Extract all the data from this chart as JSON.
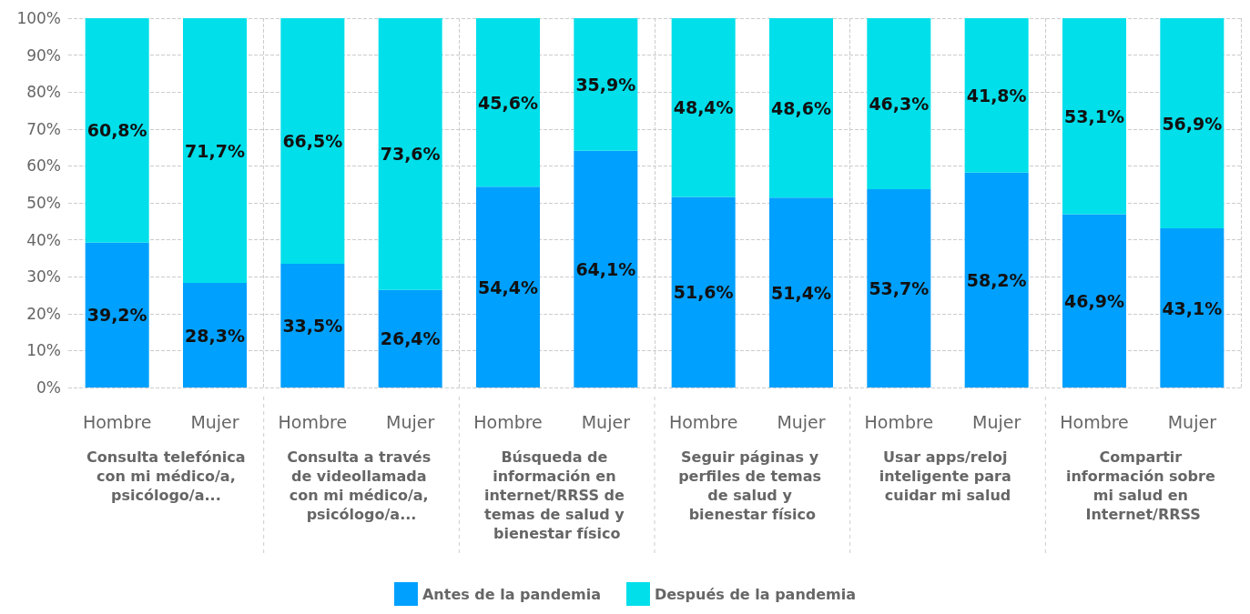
{
  "chart_data": {
    "type": "bar",
    "stacked": true,
    "categories": [
      "Hombre",
      "Mujer",
      "Hombre",
      "Mujer",
      "Hombre",
      "Mujer",
      "Hombre",
      "Mujer",
      "Hombre",
      "Mujer",
      "Hombre",
      "Mujer"
    ],
    "series": [
      {
        "name": "Antes de la pandemia",
        "color": "#00a0ff",
        "values": [
          39.2,
          28.3,
          33.5,
          26.4,
          54.4,
          64.1,
          51.6,
          51.4,
          53.7,
          58.2,
          46.9,
          43.1
        ],
        "value_labels": [
          "39,2%",
          "28,3%",
          "33,5%",
          "26,4%",
          "54,4%",
          "64,1%",
          "51,6%",
          "51,4%",
          "53,7%",
          "58,2%",
          "46,9%",
          "43,1%"
        ]
      },
      {
        "name": "Después de la pandemia",
        "color": "#00dfea",
        "values": [
          60.8,
          71.7,
          66.5,
          73.6,
          45.6,
          35.9,
          48.4,
          48.6,
          46.3,
          41.8,
          53.1,
          56.9
        ],
        "value_labels": [
          "60,8%",
          "71,7%",
          "66,5%",
          "73,6%",
          "45,6%",
          "35,9%",
          "48,4%",
          "48,6%",
          "46,3%",
          "41,8%",
          "53,1%",
          "56,9%"
        ]
      }
    ],
    "ylim": [
      0,
      100
    ],
    "yticks": [
      {
        "value": 0,
        "label": "0%"
      },
      {
        "value": 10,
        "label": "10%"
      },
      {
        "value": 20,
        "label": "20%"
      },
      {
        "value": 30,
        "label": "30%"
      },
      {
        "value": 40,
        "label": "40%"
      },
      {
        "value": 50,
        "label": "50%"
      },
      {
        "value": 60,
        "label": "60%"
      },
      {
        "value": 70,
        "label": "70%"
      },
      {
        "value": 80,
        "label": "80%"
      },
      {
        "value": 90,
        "label": "90%"
      },
      {
        "value": 100,
        "label": "100%"
      }
    ],
    "grid": "y",
    "legend": "bottom",
    "annotations": [
      "Consulta telefónica con mi médico/a, psicólogo/a...",
      "Consulta a través de videollamada con mi médico/a, psicólogo/a...",
      "Búsqueda de información en internet/RRSS de temas de salud y bienestar físico",
      "Seguir páginas y perfiles de temas de salud y bienestar físico",
      "Usar apps/reloj inteligente para cuidar mi salud",
      "Compartir información sobre mi salud en Internet/RRSS"
    ]
  }
}
